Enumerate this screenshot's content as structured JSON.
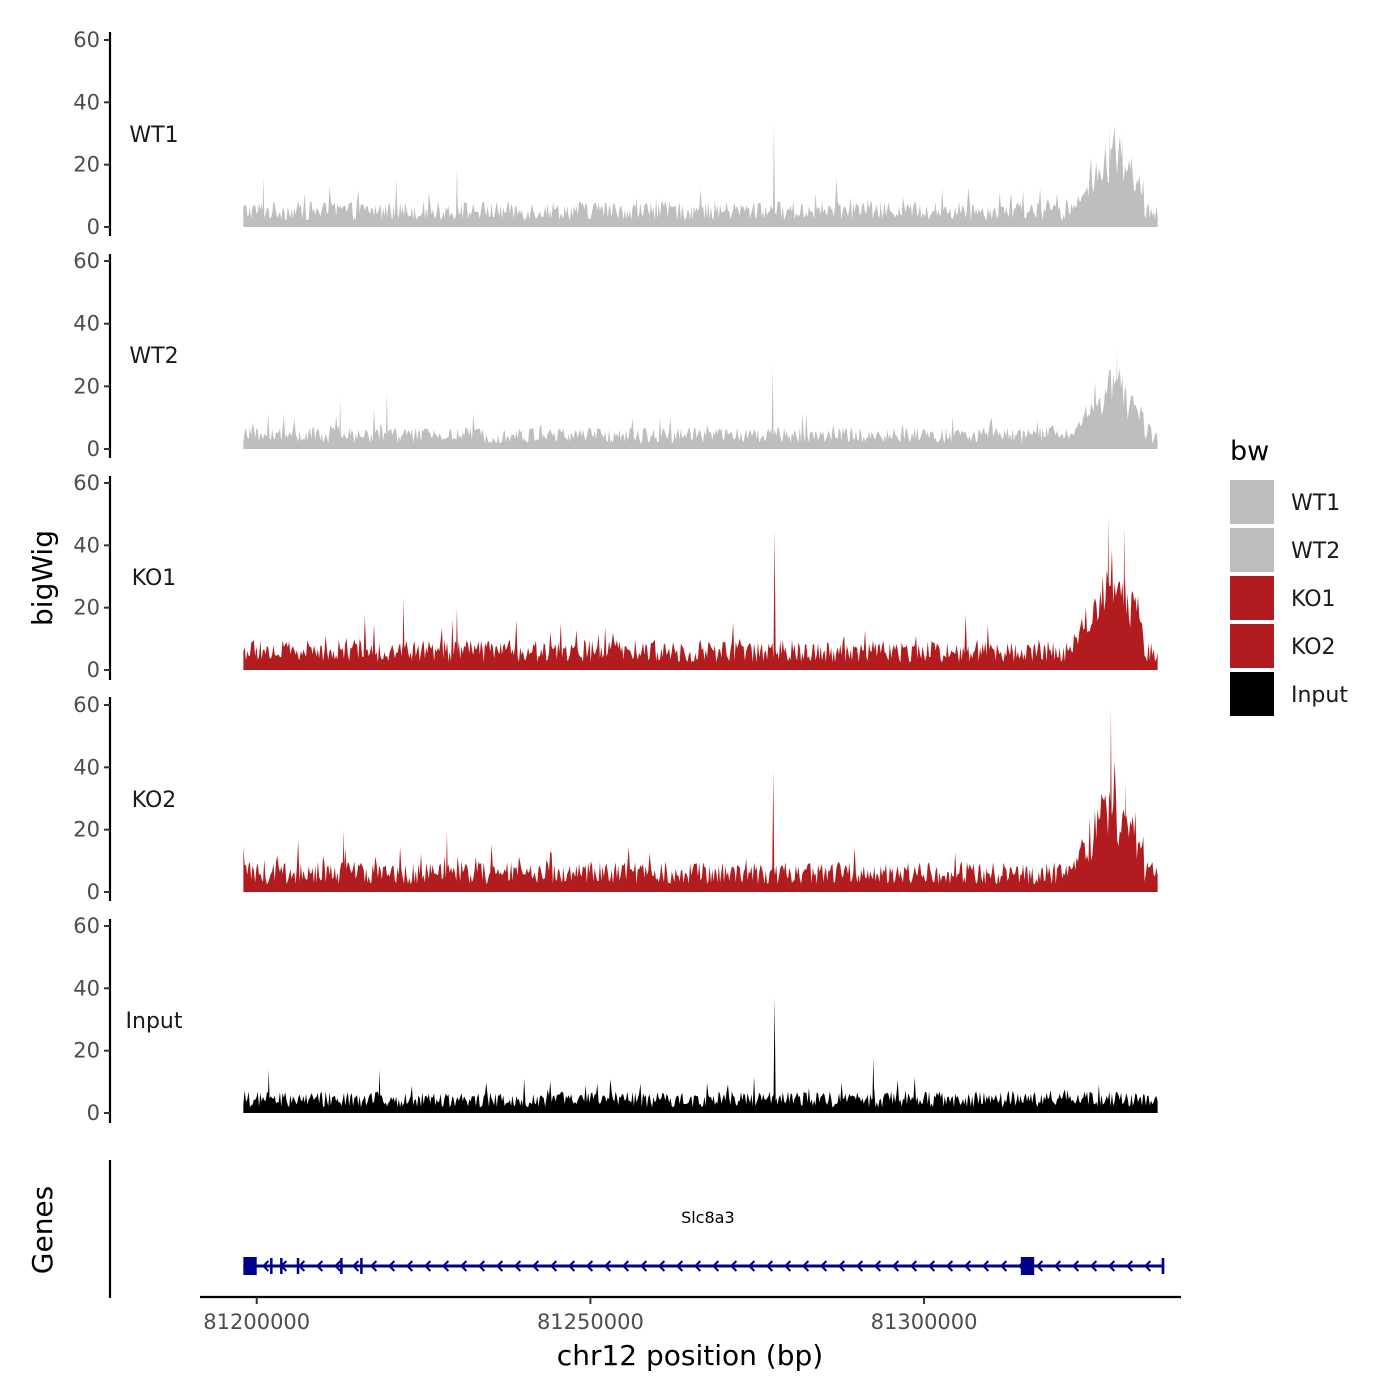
{
  "chart_data": {
    "type": "area",
    "ylabel": "bigWig",
    "xlabel": "chr12 position (bp)",
    "region": [
      81198000,
      81335000
    ],
    "xlim": [
      81191500,
      81338500
    ],
    "x_ticks": [
      81200000,
      81250000,
      81300000
    ],
    "x_tick_labels": [
      "81200000",
      "81250000",
      "81300000"
    ],
    "ylim": [
      0,
      60
    ],
    "y_ticks": [
      0,
      20,
      40,
      60
    ],
    "y_tick_labels": [
      "0",
      "20",
      "40",
      "60"
    ],
    "series": [
      {
        "name": "WT1",
        "color": "#bebebe",
        "baseline": 6,
        "peak_region": [
          81320000,
          81333000
        ],
        "peak_height": 22,
        "spikes": [
          {
            "x": 81277500,
            "y": 32
          },
          {
            "x": 81327800,
            "y": 32
          },
          {
            "x": 81329700,
            "y": 30
          },
          {
            "x": 81230000,
            "y": 19
          },
          {
            "x": 81201000,
            "y": 16
          }
        ]
      },
      {
        "name": "WT2",
        "color": "#bebebe",
        "baseline": 5,
        "peak_region": [
          81320000,
          81333000
        ],
        "peak_height": 20,
        "spikes": [
          {
            "x": 81277300,
            "y": 26
          },
          {
            "x": 81328900,
            "y": 32
          },
          {
            "x": 81219500,
            "y": 18
          },
          {
            "x": 81212500,
            "y": 16
          }
        ]
      },
      {
        "name": "KO1",
        "color": "#b21c1e",
        "baseline": 7,
        "peak_region": [
          81320000,
          81333000
        ],
        "peak_height": 30,
        "spikes": [
          {
            "x": 81277600,
            "y": 45
          },
          {
            "x": 81327600,
            "y": 49
          },
          {
            "x": 81330000,
            "y": 46
          },
          {
            "x": 81222000,
            "y": 23
          },
          {
            "x": 81230000,
            "y": 20
          }
        ]
      },
      {
        "name": "KO2",
        "color": "#b21c1e",
        "baseline": 7,
        "peak_region": [
          81320000,
          81333000
        ],
        "peak_height": 28,
        "spikes": [
          {
            "x": 81277400,
            "y": 39
          },
          {
            "x": 81328000,
            "y": 59
          },
          {
            "x": 81330200,
            "y": 35
          },
          {
            "x": 81213000,
            "y": 20
          },
          {
            "x": 81228500,
            "y": 19
          }
        ]
      },
      {
        "name": "Input",
        "color": "#000000",
        "baseline": 5,
        "peak_region": null,
        "peak_height": 0,
        "spikes": [
          {
            "x": 81277600,
            "y": 37
          },
          {
            "x": 81292400,
            "y": 18
          },
          {
            "x": 81218400,
            "y": 14
          },
          {
            "x": 81201800,
            "y": 14
          }
        ]
      }
    ],
    "legend": {
      "title": "bw",
      "position": "right",
      "entries": [
        {
          "label": "WT1",
          "color": "#bebebe"
        },
        {
          "label": "WT2",
          "color": "#bebebe"
        },
        {
          "label": "KO1",
          "color": "#b21c1e"
        },
        {
          "label": "KO2",
          "color": "#b21c1e"
        },
        {
          "label": "Input",
          "color": "#000000"
        }
      ]
    },
    "gene_track": {
      "title": "Genes",
      "gene_name": "Slc8a3",
      "strand": "-",
      "color": "#00008b",
      "start": 81198000,
      "end": 81336000,
      "exons": [
        {
          "start": 81198000,
          "end": 81200000,
          "type": "block"
        },
        {
          "start": 81314500,
          "end": 81316500,
          "type": "block"
        },
        {
          "start": 81202000,
          "end": 81202300,
          "type": "tick"
        },
        {
          "start": 81203500,
          "end": 81203800,
          "type": "tick"
        },
        {
          "start": 81206000,
          "end": 81206300,
          "type": "tick"
        },
        {
          "start": 81212500,
          "end": 81212800,
          "type": "tick"
        },
        {
          "start": 81215500,
          "end": 81215800,
          "type": "tick"
        },
        {
          "start": 81335600,
          "end": 81336000,
          "type": "tick"
        }
      ]
    }
  }
}
